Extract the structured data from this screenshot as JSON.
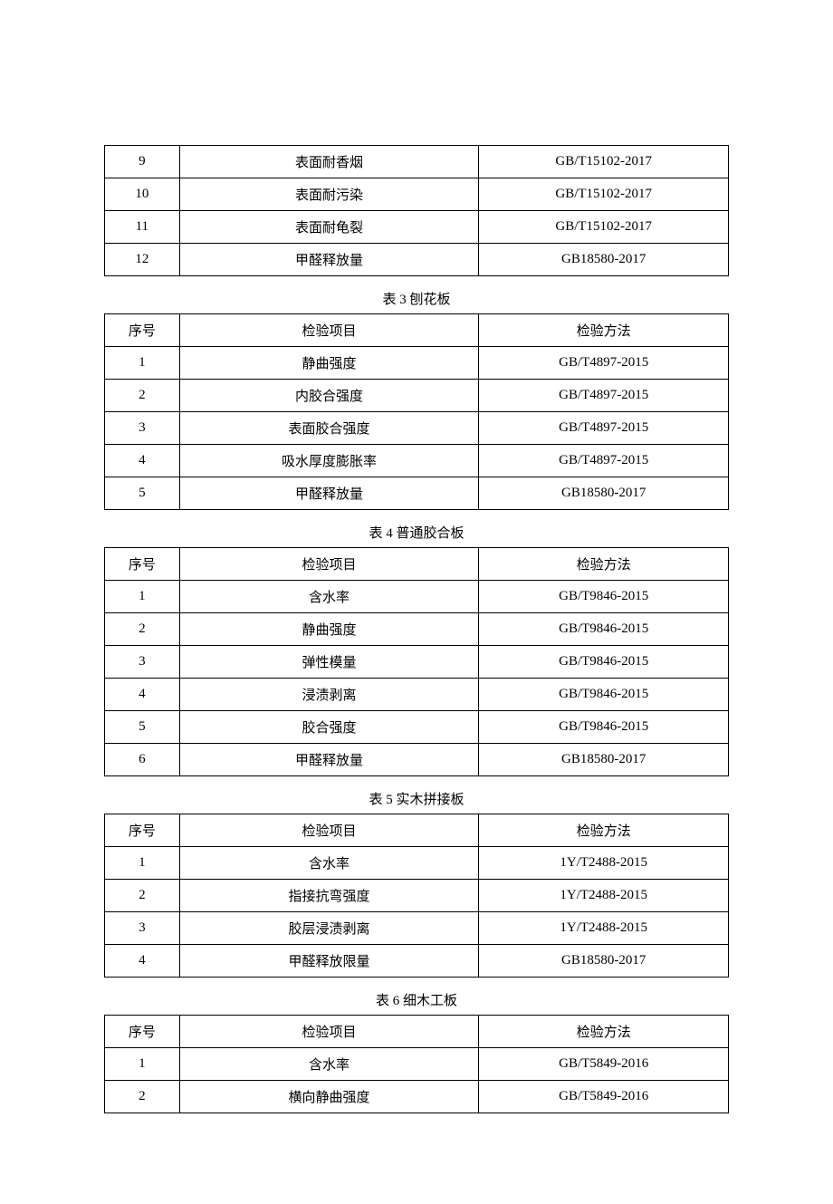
{
  "headers": {
    "seq": "序号",
    "item": "检验项目",
    "method": "检验方法"
  },
  "table_partial": {
    "rows": [
      {
        "seq": "9",
        "item": "表面耐香烟",
        "method": "GB/T15102-2017"
      },
      {
        "seq": "10",
        "item": "表面耐污染",
        "method": "GB/T15102-2017"
      },
      {
        "seq": "11",
        "item": "表面耐龟裂",
        "method": "GB/T15102-2017"
      },
      {
        "seq": "12",
        "item": "甲醛释放量",
        "method": "GB18580-2017"
      }
    ]
  },
  "table3": {
    "caption": "表 3 刨花板",
    "rows": [
      {
        "seq": "1",
        "item": "静曲强度",
        "method": "GB/T4897-2015"
      },
      {
        "seq": "2",
        "item": "内胶合强度",
        "method": "GB/T4897-2015"
      },
      {
        "seq": "3",
        "item": "表面胶合强度",
        "method": "GB/T4897-2015"
      },
      {
        "seq": "4",
        "item": "吸水厚度膨胀率",
        "method": "GB/T4897-2015"
      },
      {
        "seq": "5",
        "item": "甲醛释放量",
        "method": "GB18580-2017"
      }
    ]
  },
  "table4": {
    "caption": "表 4 普通胶合板",
    "rows": [
      {
        "seq": "1",
        "item": "含水率",
        "method": "GB/T9846-2015"
      },
      {
        "seq": "2",
        "item": "静曲强度",
        "method": "GB/T9846-2015"
      },
      {
        "seq": "3",
        "item": "弹性模量",
        "method": "GB/T9846-2015"
      },
      {
        "seq": "4",
        "item": "浸渍剥离",
        "method": "GB/T9846-2015"
      },
      {
        "seq": "5",
        "item": "胶合强度",
        "method": "GB/T9846-2015"
      },
      {
        "seq": "6",
        "item": "甲醛释放量",
        "method": "GB18580-2017"
      }
    ]
  },
  "table5": {
    "caption": "表 5 实木拼接板",
    "rows": [
      {
        "seq": "1",
        "item": "含水率",
        "method": "1Y/T2488-2015"
      },
      {
        "seq": "2",
        "item": "指接抗弯强度",
        "method": "1Y/T2488-2015"
      },
      {
        "seq": "3",
        "item": "胶层浸渍剥离",
        "method": "1Y/T2488-2015"
      },
      {
        "seq": "4",
        "item": "甲醛释放限量",
        "method": "GB18580-2017"
      }
    ]
  },
  "table6": {
    "caption": "表 6 细木工板",
    "rows": [
      {
        "seq": "1",
        "item": "含水率",
        "method": "GB/T5849-2016"
      },
      {
        "seq": "2",
        "item": "横向静曲强度",
        "method": "GB/T5849-2016"
      }
    ]
  }
}
